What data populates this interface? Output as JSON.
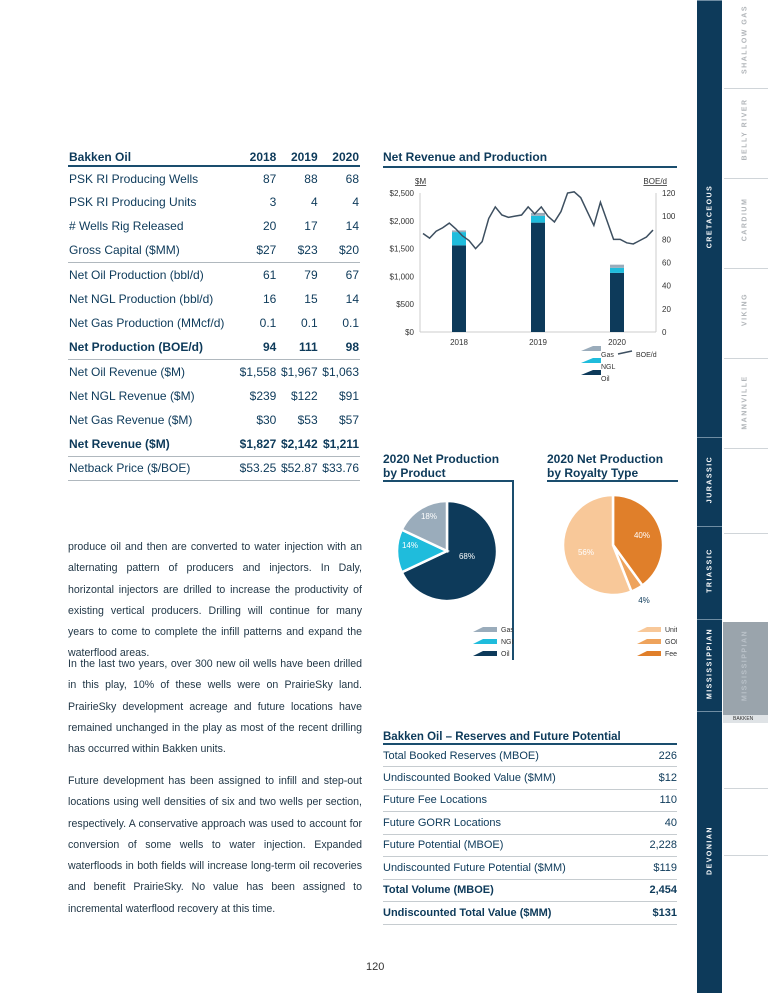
{
  "ops_table": {
    "title": "Bakken Oil",
    "years": [
      "2018",
      "2019",
      "2020"
    ],
    "rows": [
      {
        "label": "PSK RI Producing Wells",
        "v": [
          "87",
          "88",
          "68"
        ]
      },
      {
        "label": "PSK RI Producing Units",
        "v": [
          "3",
          "4",
          "4"
        ]
      },
      {
        "label": "# Wells Rig Released",
        "v": [
          "20",
          "17",
          "14"
        ]
      },
      {
        "label": "Gross Capital ($MM)",
        "v": [
          "$27",
          "$23",
          "$20"
        ]
      },
      {
        "label": "Net Oil Production (bbl/d)",
        "v": [
          "61",
          "79",
          "67"
        ]
      },
      {
        "label": "Net NGL Production (bbl/d)",
        "v": [
          "16",
          "15",
          "14"
        ]
      },
      {
        "label": "Net Gas Production (MMcf/d)",
        "v": [
          "0.1",
          "0.1",
          "0.1"
        ]
      },
      {
        "label": "Net Production (BOE/d)",
        "v": [
          "94",
          "111",
          "98"
        ]
      },
      {
        "label": "Net Oil Revenue ($M)",
        "v": [
          "$1,558",
          "$1,967",
          "$1,063"
        ]
      },
      {
        "label": "Net NGL Revenue ($M)",
        "v": [
          "$239",
          "$122",
          "$91"
        ]
      },
      {
        "label": "Net Gas Revenue ($M)",
        "v": [
          "$30",
          "$53",
          "$57"
        ]
      },
      {
        "label": "Net Revenue ($M)",
        "v": [
          "$1,827",
          "$2,142",
          "$1,211"
        ]
      },
      {
        "label": "Netback Price ($/BOE)",
        "v": [
          "$53.25",
          "$52.87",
          "$33.76"
        ]
      }
    ]
  },
  "paragraphs": [
    "produce oil and then are converted to water injection with an alternating pattern of producers and injectors. In Daly, horizontal injectors are drilled to increase the productivity of existing vertical producers. Drilling will continue for many years to come to complete the infill patterns and expand the waterflood areas.",
    "In the last two years, over 300 new oil wells have been drilled in this play, 10% of these wells were on PrairieSky land. PrairieSky development acreage and future locations have remained unchanged in the play as most of the recent drilling has occurred within Bakken units.",
    "Future development has been assigned to infill and step-out locations using well densities of six and two wells per section, respectively. A conservative approach was used to account for conversion of some wells to water injection. Expanded waterfloods in both fields will increase long-term oil recoveries and benefit PrairieSky. No value has been assigned to incremental waterflood recovery at this time."
  ],
  "chart_data": [
    {
      "type": "bar",
      "title": "Net Revenue and Production",
      "ylabel": "$M",
      "y2label": "BOE/d",
      "categories": [
        "2018",
        "2019",
        "2020"
      ],
      "series": [
        {
          "name": "Oil",
          "values": [
            1558,
            1967,
            1063
          ],
          "color": "#0d3a5a"
        },
        {
          "name": "NGL",
          "values": [
            239,
            122,
            91
          ],
          "color": "#1fbcdc"
        },
        {
          "name": "Gas",
          "values": [
            30,
            53,
            57
          ],
          "color": "#9aacbb"
        }
      ],
      "line": {
        "name": "BOE/d",
        "color": "#3d4f60",
        "values": [
          85,
          81,
          87,
          90,
          94,
          89,
          83,
          79,
          72,
          78,
          98,
          108,
          101,
          99,
          100,
          101,
          108,
          102,
          108,
          100,
          95,
          104,
          120,
          121,
          116,
          104,
          92,
          112,
          96,
          80,
          80,
          77,
          76,
          79,
          82,
          88
        ]
      },
      "ylim": [
        0,
        2500
      ],
      "yticks": [
        "$0",
        "$500",
        "$1,000",
        "$1,500",
        "$2,000",
        "$2,500"
      ],
      "y2lim": [
        0,
        120
      ],
      "y2ticks": [
        "0",
        "20",
        "40",
        "60",
        "80",
        "100",
        "120"
      ]
    },
    {
      "type": "pie",
      "title": [
        "2020 Net Production",
        "by Product"
      ],
      "slices": [
        {
          "name": "Oil",
          "value": 68,
          "label": "68%",
          "color": "#0d3a5a"
        },
        {
          "name": "NGL",
          "value": 14,
          "label": "14%",
          "color": "#1fbcdc"
        },
        {
          "name": "Gas",
          "value": 18,
          "label": "18%",
          "color": "#9aacbb"
        }
      ],
      "legend": [
        "Gas",
        "NGL",
        "Oil"
      ]
    },
    {
      "type": "pie",
      "title": [
        "2020 Net Production",
        "by Royalty Type"
      ],
      "slices": [
        {
          "name": "Fee",
          "value": 40,
          "label": "40%",
          "color": "#e07f2a"
        },
        {
          "name": "GORR",
          "value": 4,
          "label": "4%",
          "color": "#eea35c"
        },
        {
          "name": "Unit",
          "value": 56,
          "label": "56%",
          "color": "#f8c899"
        }
      ],
      "legend": [
        "Unit",
        "GORR",
        "Fee"
      ]
    }
  ],
  "reserves": {
    "title": "Bakken Oil – Reserves and Future Potential",
    "rows": [
      {
        "label": "Total Booked Reserves (MBOE)",
        "value": "226"
      },
      {
        "label": "Undiscounted Booked Value ($MM)",
        "value": "$12"
      },
      {
        "label": "Future Fee Locations",
        "value": "110"
      },
      {
        "label": "Future GORR Locations",
        "value": "40"
      },
      {
        "label": "Future Potential (MBOE)",
        "value": "2,228"
      },
      {
        "label": "Undiscounted Future Potential ($MM)",
        "value": "$119"
      },
      {
        "label": "Total Volume (MBOE)",
        "value": "2,454"
      },
      {
        "label": "Undiscounted Total Value ($MM)",
        "value": "$131"
      }
    ]
  },
  "page_number": "120",
  "nav": {
    "periods": [
      "CRETACEOUS",
      "JURASSIC",
      "TRIASSIC",
      "MISSISSIPPIAN",
      "DEVONIAN"
    ],
    "plays": [
      "SHALLOW GAS",
      "BELLY RIVER",
      "CARDIUM",
      "VIKING",
      "MANNVILLE"
    ],
    "active": "MISSISSIPPIAN",
    "active_sub": "BAKKEN"
  }
}
